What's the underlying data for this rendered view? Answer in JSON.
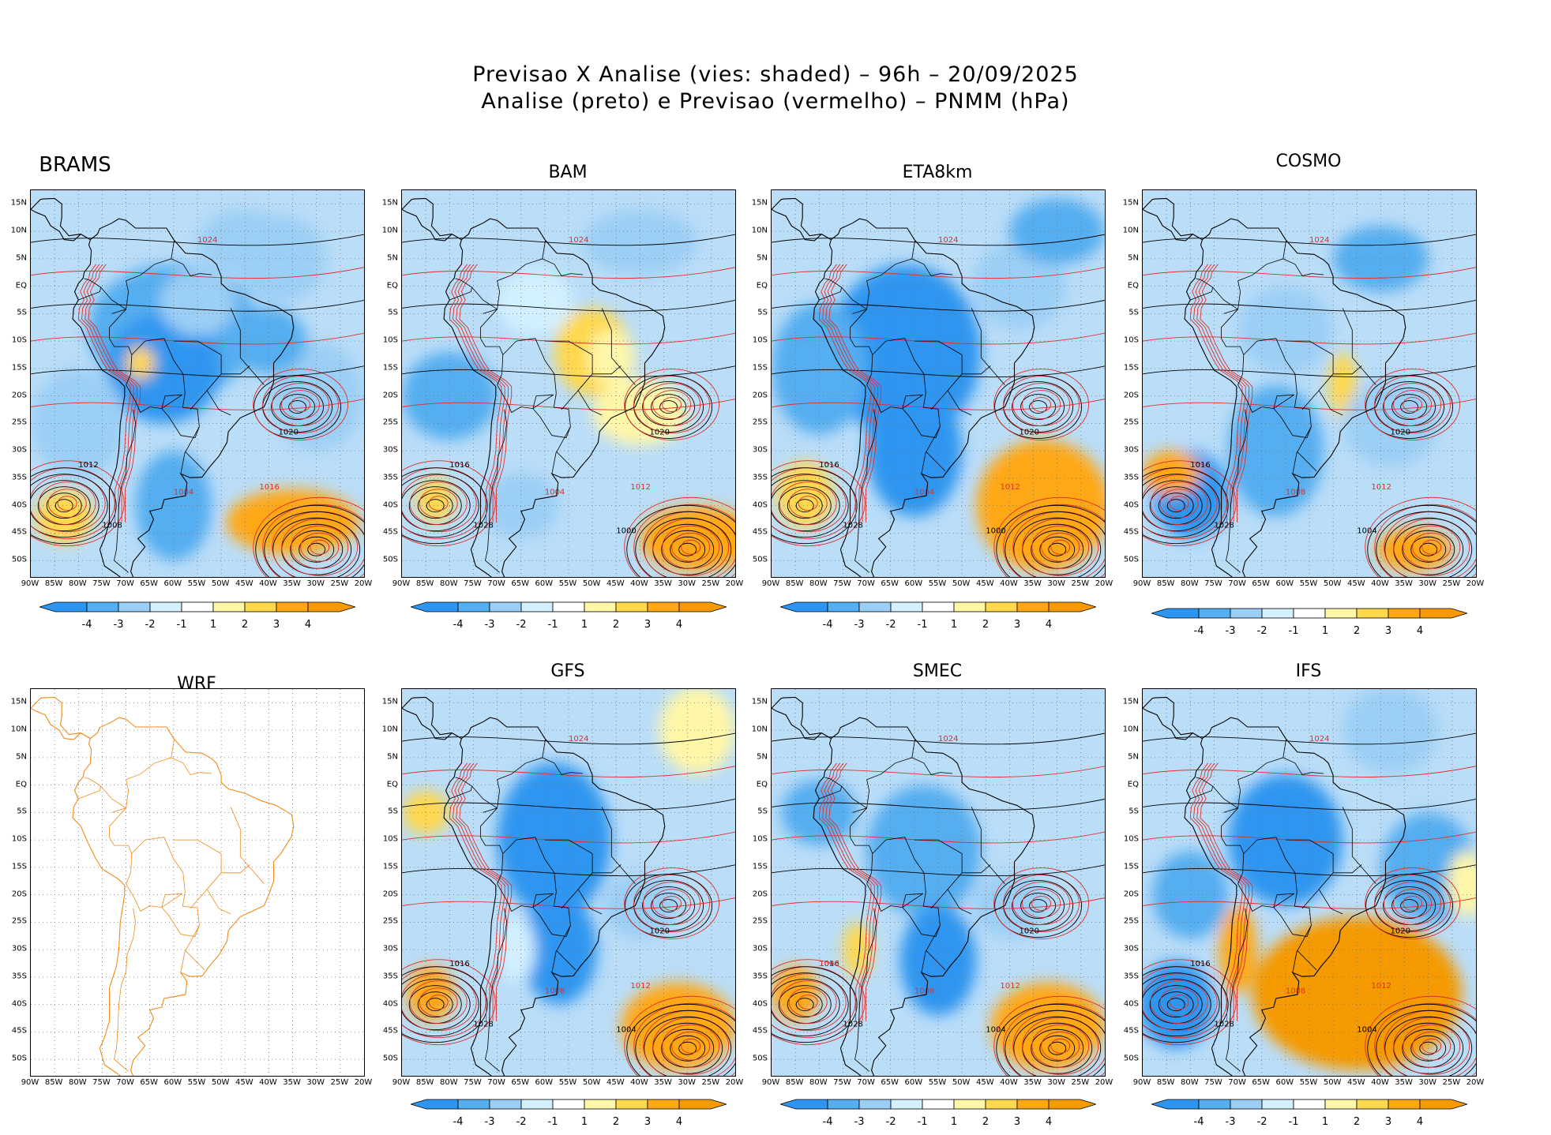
{
  "title": {
    "line1": "Previsao X Analise (vies: shaded) – 96h – 20/09/2025",
    "line2": "Analise (preto) e Previsao (vermelho) – PNMM (hPa)"
  },
  "lat_ticks": [
    "15N",
    "10N",
    "5N",
    "EQ",
    "5S",
    "10S",
    "15S",
    "20S",
    "25S",
    "30S",
    "35S",
    "40S",
    "45S",
    "50S"
  ],
  "lon_ticks": [
    "90W",
    "85W",
    "80W",
    "75W",
    "70W",
    "65W",
    "60W",
    "55W",
    "50W",
    "45W",
    "40W",
    "35W",
    "30W",
    "25W",
    "20W"
  ],
  "colorbar": {
    "labels": [
      "-4",
      "-3",
      "-2",
      "-1",
      "1",
      "2",
      "3",
      "4"
    ],
    "colors": [
      "#2e96f0",
      "#55aef0",
      "#9ccff5",
      "#d3f0ff",
      "#ffffff",
      "#fff7a8",
      "#ffd84d",
      "#ffa814",
      "#f59a00"
    ]
  },
  "panels": [
    {
      "name": "BRAMS",
      "contour_labels": [
        "1012",
        "1016",
        "1020",
        "1024",
        "1008",
        "1004"
      ]
    },
    {
      "name": "BAM",
      "contour_labels": [
        "1016",
        "1012",
        "1020",
        "1024",
        "1028",
        "1004",
        "1000"
      ]
    },
    {
      "name": "ETA8km",
      "contour_labels": [
        "1016",
        "1012",
        "1020",
        "1024",
        "1028",
        "1004",
        "1000"
      ]
    },
    {
      "name": "COSMO",
      "contour_labels": [
        "1016",
        "1012",
        "1020",
        "1024",
        "1028",
        "1008",
        "1004"
      ]
    },
    {
      "name": "WRF",
      "contour_labels": []
    },
    {
      "name": "GFS",
      "contour_labels": [
        "1016",
        "1012",
        "1020",
        "1024",
        "1028",
        "1008",
        "1004"
      ]
    },
    {
      "name": "SMEC",
      "contour_labels": [
        "1016",
        "1012",
        "1020",
        "1024",
        "1028",
        "1008",
        "1004",
        "1000"
      ]
    },
    {
      "name": "IFS",
      "contour_labels": [
        "1016",
        "1012",
        "1020",
        "1024",
        "1028",
        "1008",
        "1004"
      ]
    }
  ],
  "colors": {
    "analysis_contour": "#000000",
    "forecast_contour": "#e0302a",
    "coastline_wrf": "#f08a1a"
  }
}
